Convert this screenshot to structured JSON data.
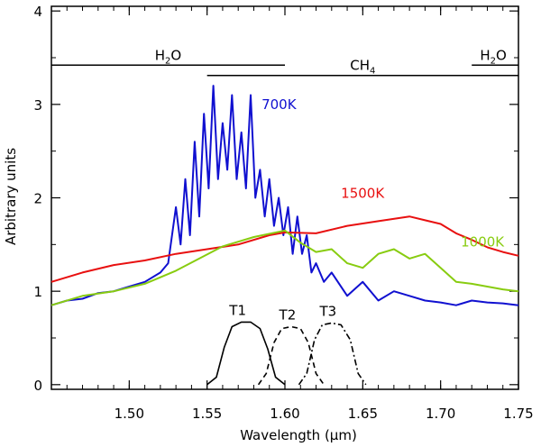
{
  "chart_data": {
    "type": "line",
    "title": "",
    "xlabel": "Wavelength (µm)",
    "ylabel": "Arbitrary units",
    "xlim": [
      1.45,
      1.75
    ],
    "ylim": [
      -0.05,
      4.05
    ],
    "x_ticks": [
      1.5,
      1.55,
      1.6,
      1.65,
      1.7,
      1.75
    ],
    "x_tick_labels": [
      "1.50",
      "1.55",
      "1.60",
      "1.65",
      "1.70",
      "1.75"
    ],
    "y_ticks": [
      0,
      1,
      2,
      3,
      4
    ],
    "y_tick_labels": [
      "0",
      "1",
      "2",
      "3",
      "4"
    ],
    "grid": false,
    "absorption_bands": [
      {
        "label": "H2O",
        "base": "H",
        "sub": "2",
        "tail": "O",
        "x_start": 1.45,
        "x_end": 1.6,
        "y": 3.42
      },
      {
        "label": "CH4",
        "base": "CH",
        "sub": "4",
        "tail": "",
        "x_start": 1.55,
        "x_end": 1.75,
        "y": 3.31
      },
      {
        "label": "H2O",
        "base": "H",
        "sub": "2",
        "tail": "O",
        "x_start": 1.72,
        "x_end": 1.75,
        "y": 3.42
      }
    ],
    "series": [
      {
        "name": "700K",
        "color": "#1010d0",
        "x": [
          1.45,
          1.46,
          1.47,
          1.48,
          1.49,
          1.5,
          1.51,
          1.52,
          1.525,
          1.53,
          1.533,
          1.536,
          1.539,
          1.542,
          1.545,
          1.548,
          1.551,
          1.554,
          1.557,
          1.56,
          1.563,
          1.566,
          1.569,
          1.572,
          1.575,
          1.578,
          1.581,
          1.584,
          1.587,
          1.59,
          1.593,
          1.596,
          1.599,
          1.602,
          1.605,
          1.608,
          1.611,
          1.614,
          1.617,
          1.62,
          1.625,
          1.63,
          1.64,
          1.65,
          1.66,
          1.67,
          1.68,
          1.69,
          1.7,
          1.71,
          1.72,
          1.73,
          1.74,
          1.75
        ],
        "y": [
          0.85,
          0.9,
          0.92,
          0.98,
          1.0,
          1.05,
          1.1,
          1.2,
          1.3,
          1.9,
          1.5,
          2.2,
          1.6,
          2.6,
          1.8,
          2.9,
          2.1,
          3.2,
          2.2,
          2.8,
          2.3,
          3.1,
          2.2,
          2.7,
          2.1,
          3.1,
          2.0,
          2.3,
          1.8,
          2.2,
          1.7,
          2.0,
          1.6,
          1.9,
          1.4,
          1.8,
          1.4,
          1.6,
          1.2,
          1.3,
          1.1,
          1.2,
          0.95,
          1.1,
          0.9,
          1.0,
          0.95,
          0.9,
          0.88,
          0.85,
          0.9,
          0.88,
          0.87,
          0.85
        ]
      },
      {
        "name": "1500K",
        "color": "#e81010",
        "x": [
          1.45,
          1.47,
          1.49,
          1.51,
          1.53,
          1.55,
          1.57,
          1.59,
          1.6,
          1.62,
          1.64,
          1.66,
          1.68,
          1.69,
          1.7,
          1.71,
          1.72,
          1.73,
          1.74,
          1.75
        ],
        "y": [
          1.1,
          1.2,
          1.28,
          1.33,
          1.4,
          1.45,
          1.5,
          1.6,
          1.63,
          1.62,
          1.7,
          1.75,
          1.8,
          1.76,
          1.72,
          1.62,
          1.55,
          1.47,
          1.42,
          1.38
        ]
      },
      {
        "name": "1000K",
        "color": "#88cc10",
        "x": [
          1.45,
          1.47,
          1.49,
          1.51,
          1.53,
          1.545,
          1.56,
          1.58,
          1.6,
          1.61,
          1.62,
          1.63,
          1.64,
          1.65,
          1.66,
          1.67,
          1.68,
          1.69,
          1.7,
          1.71,
          1.72,
          1.73,
          1.74,
          1.75
        ],
        "y": [
          0.85,
          0.95,
          1.0,
          1.08,
          1.22,
          1.35,
          1.48,
          1.58,
          1.65,
          1.52,
          1.42,
          1.45,
          1.3,
          1.25,
          1.4,
          1.45,
          1.35,
          1.4,
          1.25,
          1.1,
          1.08,
          1.05,
          1.02,
          1.0
        ]
      }
    ],
    "filters": [
      {
        "name": "T1",
        "style": "solid",
        "x": [
          1.55,
          1.556,
          1.561,
          1.566,
          1.572,
          1.578,
          1.584,
          1.589,
          1.594,
          1.6
        ],
        "y": [
          0.0,
          0.08,
          0.4,
          0.62,
          0.67,
          0.67,
          0.6,
          0.38,
          0.08,
          0.0
        ]
      },
      {
        "name": "T2",
        "style": "dashed",
        "x": [
          1.583,
          1.588,
          1.593,
          1.598,
          1.604,
          1.61,
          1.615,
          1.62,
          1.625
        ],
        "y": [
          0.0,
          0.12,
          0.45,
          0.6,
          0.62,
          0.6,
          0.45,
          0.12,
          0.0
        ]
      },
      {
        "name": "T3",
        "style": "dashdot",
        "x": [
          1.609,
          1.614,
          1.619,
          1.624,
          1.63,
          1.636,
          1.642,
          1.647,
          1.652
        ],
        "y": [
          0.0,
          0.12,
          0.48,
          0.64,
          0.66,
          0.64,
          0.48,
          0.12,
          0.0
        ]
      }
    ]
  }
}
